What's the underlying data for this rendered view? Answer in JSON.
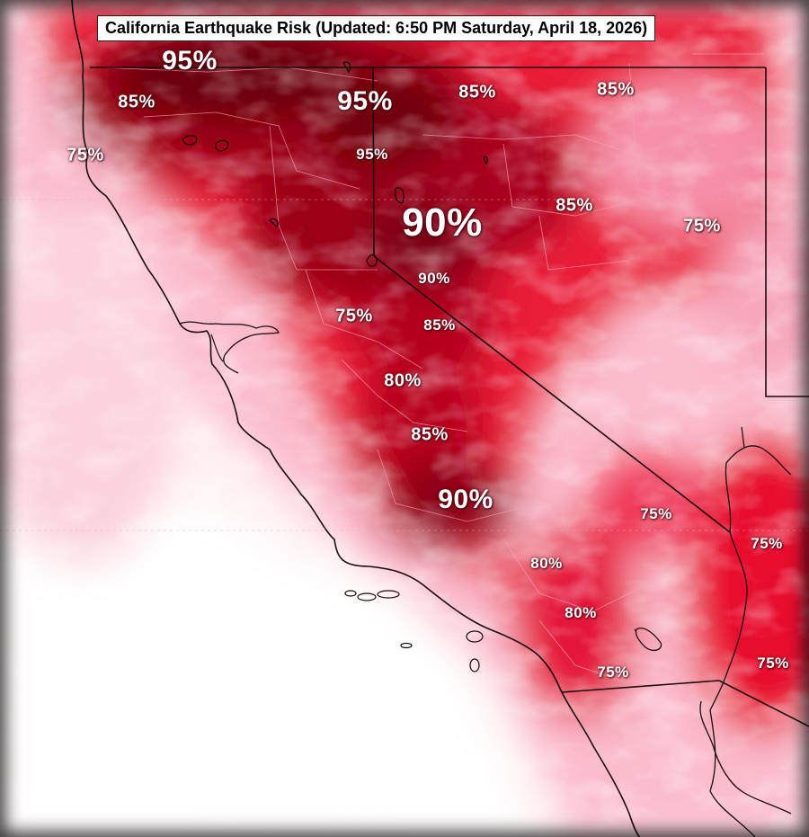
{
  "title": "California Earthquake Risk (Updated: 6:50 PM Saturday, April 18, 2026)",
  "colors": {
    "deep": "#6e0010",
    "dark": "#b2001c",
    "red": "#e4112e",
    "mid": "#f4567a",
    "light": "#fbb3c6",
    "pale": "#fff2f5",
    "border": "#1a0a0a",
    "county": "#f7a3b6"
  },
  "labels": [
    {
      "text": "95%",
      "size": "l"
    },
    {
      "text": "85%",
      "size": "m"
    },
    {
      "text": "75%",
      "size": "m"
    },
    {
      "text": "95%",
      "size": "l"
    },
    {
      "text": "95%",
      "size": "s"
    },
    {
      "text": "85%",
      "size": "m"
    },
    {
      "text": "85%",
      "size": "m"
    },
    {
      "text": "90%",
      "size": "xl"
    },
    {
      "text": "85%",
      "size": "m"
    },
    {
      "text": "75%",
      "size": "m"
    },
    {
      "text": "90%",
      "size": "s"
    },
    {
      "text": "75%",
      "size": "m"
    },
    {
      "text": "85%",
      "size": "s"
    },
    {
      "text": "80%",
      "size": "m"
    },
    {
      "text": "85%",
      "size": "m"
    },
    {
      "text": "90%",
      "size": "l"
    },
    {
      "text": "75%",
      "size": "s"
    },
    {
      "text": "75%",
      "size": "s"
    },
    {
      "text": "80%",
      "size": "s"
    },
    {
      "text": "80%",
      "size": "s"
    },
    {
      "text": "75%",
      "size": "s"
    },
    {
      "text": "75%",
      "size": "s"
    }
  ]
}
